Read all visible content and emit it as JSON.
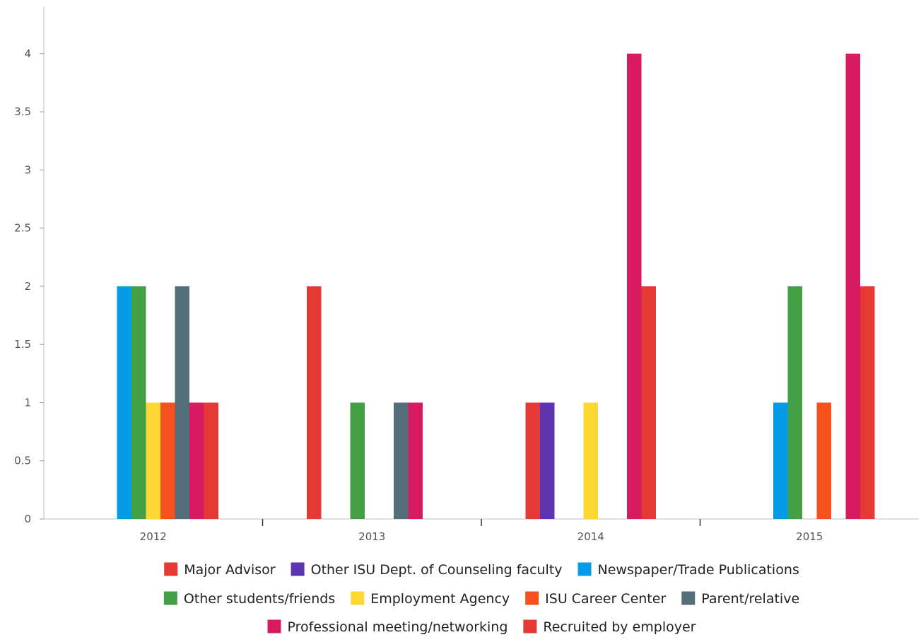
{
  "chart_data": {
    "type": "bar",
    "categories": [
      "2012",
      "2013",
      "2014",
      "2015"
    ],
    "ylim": [
      0,
      4.4
    ],
    "yticks": [
      0,
      0.5,
      1,
      1.5,
      2,
      2.5,
      3,
      3.5,
      4
    ],
    "ytick_labels": [
      "0",
      "0.5",
      "1",
      "1.5",
      "2",
      "2.5",
      "3",
      "3.5",
      "4"
    ],
    "grid": false,
    "legend_position": "bottom",
    "series": [
      {
        "name": "Major Advisor",
        "color": "#E53935",
        "values": [
          0,
          2,
          1,
          0
        ]
      },
      {
        "name": "Other ISU Dept. of Counseling faculty",
        "color": "#5E35B1",
        "values": [
          0,
          0,
          1,
          0
        ]
      },
      {
        "name": "Newspaper/Trade Publications",
        "color": "#039BE5",
        "values": [
          2,
          0,
          0,
          1
        ]
      },
      {
        "name": "Other students/friends",
        "color": "#43A047",
        "values": [
          2,
          1,
          0,
          2
        ]
      },
      {
        "name": "Employment Agency",
        "color": "#FDD835",
        "values": [
          1,
          0,
          1,
          0
        ]
      },
      {
        "name": "ISU Career Center",
        "color": "#F4511E",
        "values": [
          1,
          0,
          0,
          1
        ]
      },
      {
        "name": "Parent/relative",
        "color": "#546E7A",
        "values": [
          2,
          1,
          0,
          0
        ]
      },
      {
        "name": "Professional meeting/networking",
        "color": "#D81B60",
        "values": [
          1,
          1,
          4,
          4
        ]
      },
      {
        "name": "Recruited by employer",
        "color": "#E53935",
        "values": [
          1,
          0,
          2,
          2
        ]
      }
    ]
  }
}
